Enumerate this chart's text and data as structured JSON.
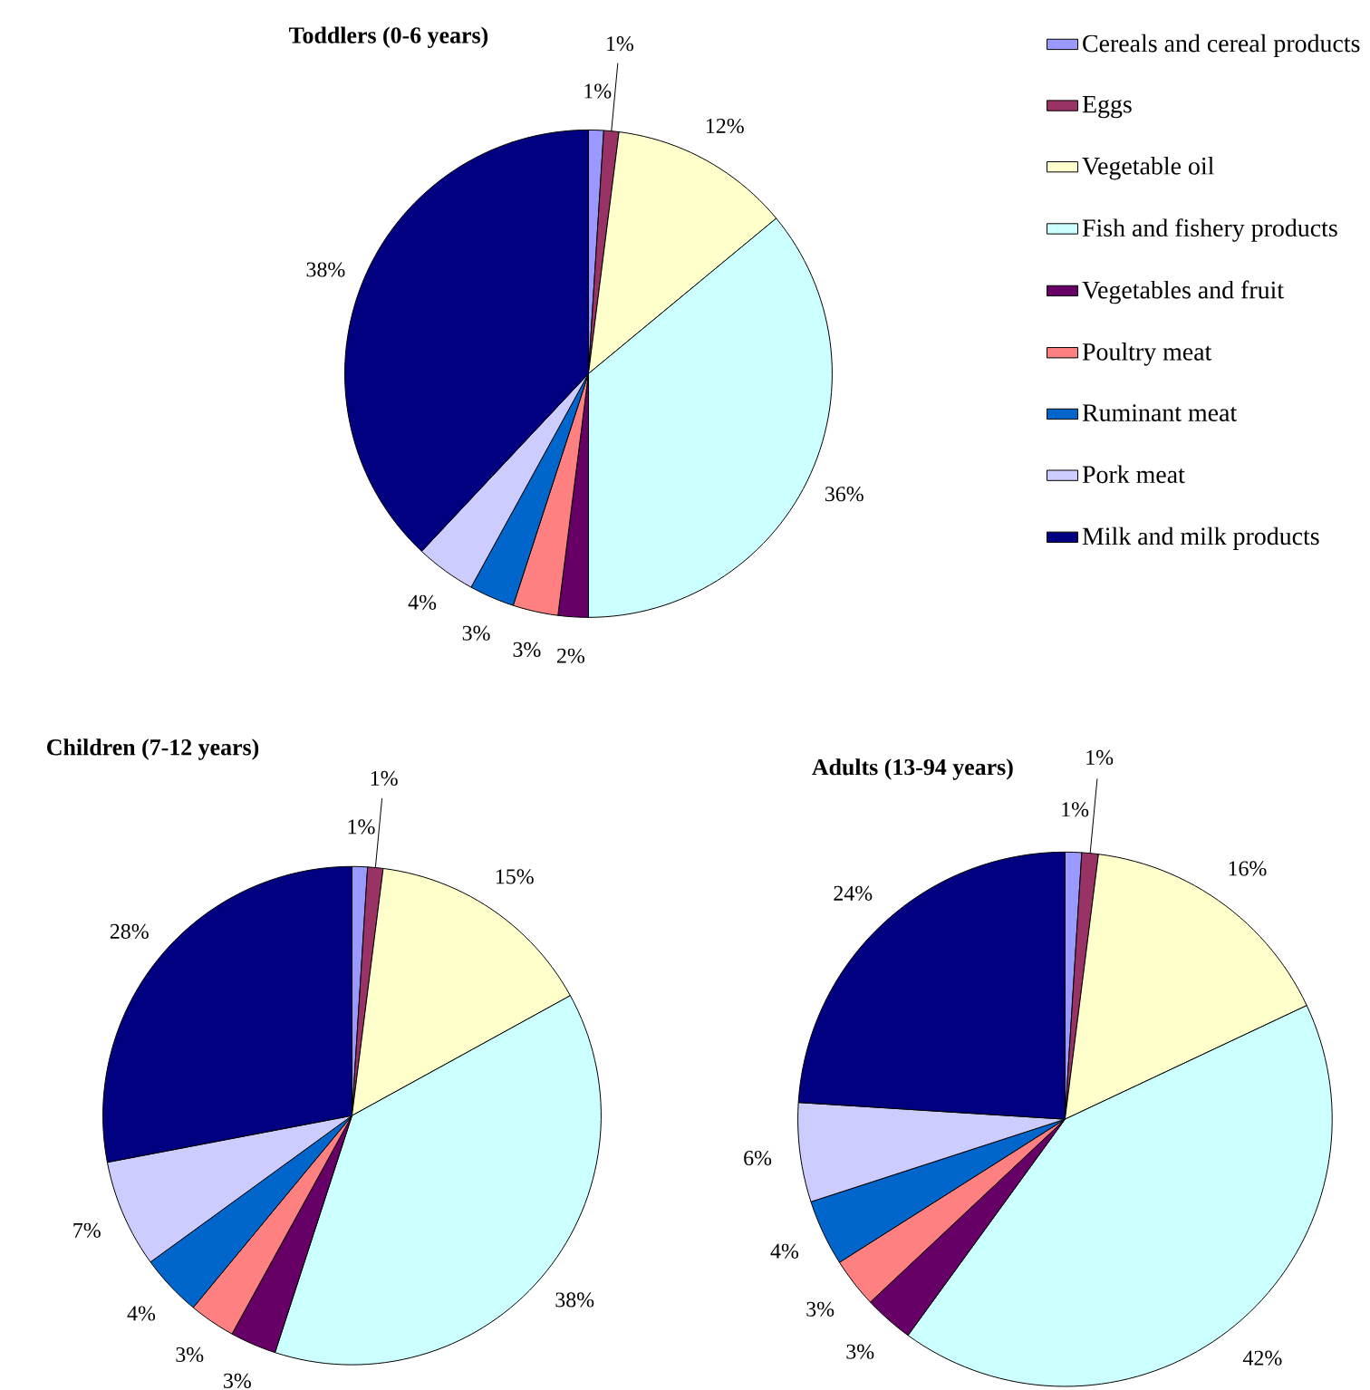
{
  "chart_data": [
    {
      "type": "pie",
      "title": "Toddlers (0-6 years)",
      "categories": [
        "Cereals and cereal products",
        "Eggs",
        "Vegetable oil",
        "Fish and fishery products",
        "Vegetables and fruit",
        "Poultry meat",
        "Ruminant meat",
        "Pork meat",
        "Milk and milk products"
      ],
      "values": [
        1,
        1,
        12,
        36,
        2,
        3,
        3,
        4,
        38
      ],
      "value_labels": [
        "1%",
        "1%",
        "12%",
        "36%",
        "2%",
        "3%",
        "3%",
        "4%",
        "38%"
      ],
      "colors": [
        "#9999ff",
        "#993366",
        "#ffffcc",
        "#ccffff",
        "#660066",
        "#ff8080",
        "#0066cc",
        "#ccccff",
        "#000080"
      ],
      "legend": "right"
    },
    {
      "type": "pie",
      "title": "Children (7-12 years)",
      "categories": [
        null,
        null,
        null,
        null,
        null,
        null,
        null,
        null,
        null
      ],
      "values": [
        1,
        1,
        15,
        38,
        3,
        3,
        4,
        7,
        28
      ],
      "value_labels": [
        "1%",
        "1%",
        "15%",
        "38%",
        "3%",
        "3%",
        "4%",
        "7%",
        "28%"
      ],
      "colors": [
        "#9999ff",
        "#993366",
        "#ffffcc",
        "#ccffff",
        "#660066",
        "#ff8080",
        "#0066cc",
        "#ccccff",
        "#000080"
      ],
      "legend": false
    },
    {
      "type": "pie",
      "title": "Adults (13-94 years)",
      "categories": [
        null,
        null,
        null,
        null,
        null,
        null,
        null,
        null,
        null
      ],
      "values": [
        1,
        1,
        16,
        42,
        3,
        3,
        4,
        6,
        24
      ],
      "value_labels": [
        "1%",
        "1%",
        "16%",
        "42%",
        "3%",
        "3%",
        "4%",
        "6%",
        "24%"
      ],
      "colors": [
        "#9999ff",
        "#993366",
        "#ffffcc",
        "#ccffff",
        "#660066",
        "#ff8080",
        "#0066cc",
        "#ccccff",
        "#000080"
      ],
      "legend": false
    }
  ]
}
